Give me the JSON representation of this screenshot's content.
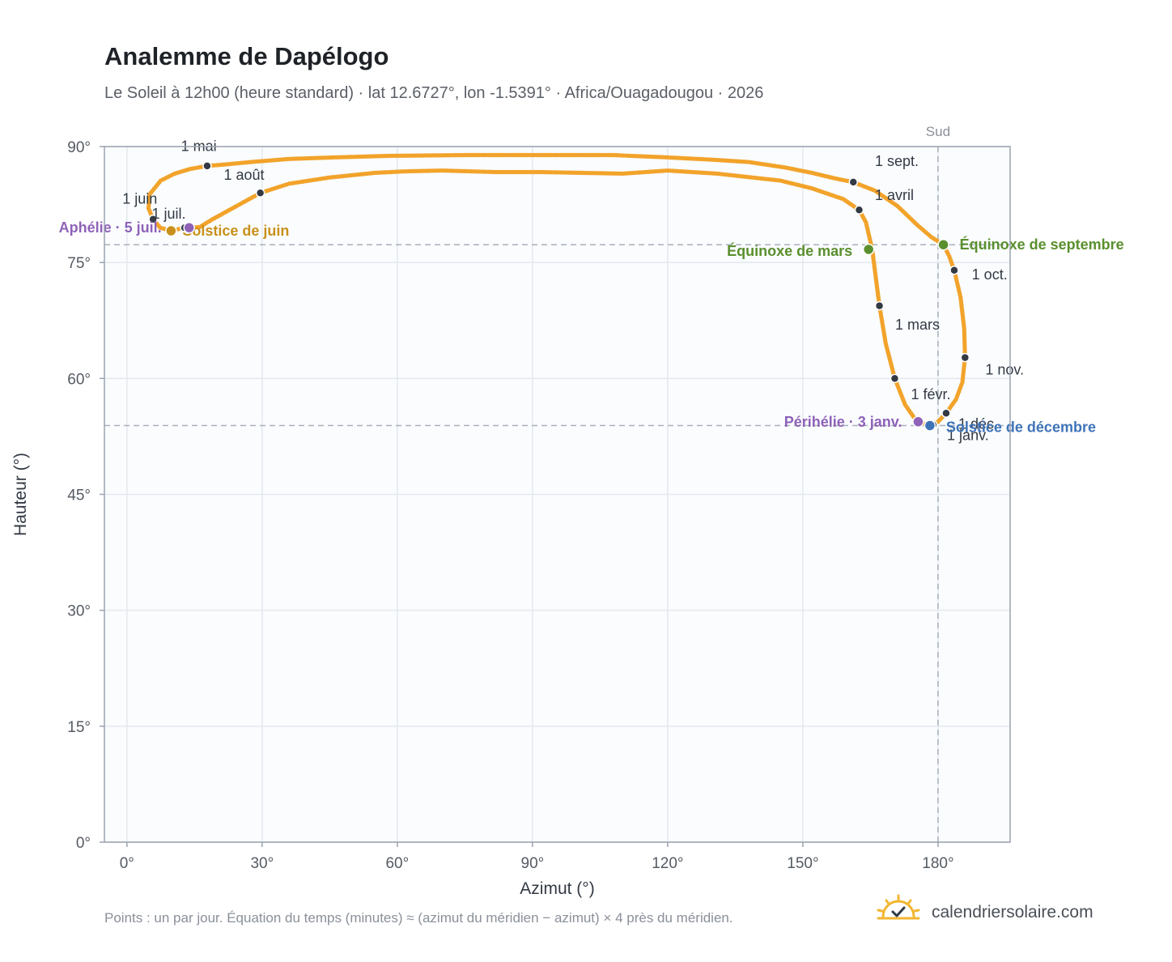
{
  "header": {
    "title": "Analemme de Dapélogo",
    "subtitle": "Le Soleil à 12h00 (heure standard) · lat 12.6727°, lon -1.5391° · Africa/Ouagadougou · 2026"
  },
  "footer": {
    "note": "Points : un par jour. Équation du temps (minutes) ≈ (azimut du méridien − azimut) × 4 près du méridien.",
    "brand": "calendriersolaire.com"
  },
  "colors": {
    "curve": "#f2a32a",
    "month_marker": "#333a44",
    "solstice_june": "#c8901a",
    "solstice_december": "#3f73b8",
    "equinox": "#5a8f2e",
    "apsis": "#8f62b8",
    "plot_bg": "#fafcfe",
    "grid": "#e4e8ee",
    "frame": "#9aa3b0",
    "reference_line": "#a8b0bb"
  },
  "chart_data": {
    "type": "scatter",
    "xlabel": "Azimut (°)",
    "ylabel": "Hauteur (°)",
    "xlim": [
      -5,
      196
    ],
    "ylim": [
      0,
      90
    ],
    "xticks": [
      0,
      30,
      60,
      90,
      120,
      150,
      180
    ],
    "yticks": [
      0,
      15,
      30,
      45,
      60,
      75,
      90
    ],
    "xtick_labels": [
      "0°",
      "30°",
      "60°",
      "90°",
      "120°",
      "150°",
      "180°"
    ],
    "ytick_labels": [
      "0°",
      "15°",
      "30°",
      "45°",
      "60°",
      "75°",
      "90°"
    ],
    "grid": true,
    "reference_lines": [
      {
        "orientation": "vertical",
        "value": 180,
        "label": "Sud"
      },
      {
        "orientation": "horizontal",
        "value": 77.3,
        "label": ""
      },
      {
        "orientation": "horizontal",
        "value": 53.9,
        "label": ""
      }
    ],
    "curve": [
      [
        178.2,
        53.9
      ],
      [
        175.2,
        54.5
      ],
      [
        172.7,
        56.6
      ],
      [
        170.4,
        60.0
      ],
      [
        168.4,
        64.5
      ],
      [
        167.0,
        69.4
      ],
      [
        166.2,
        73.0
      ],
      [
        165.4,
        76.7
      ],
      [
        164.0,
        80.2
      ],
      [
        162.5,
        81.8
      ],
      [
        159.0,
        83.2
      ],
      [
        152.0,
        84.6
      ],
      [
        145.0,
        85.6
      ],
      [
        131.0,
        86.5
      ],
      [
        120.0,
        86.9
      ],
      [
        110.0,
        86.5
      ],
      [
        92.0,
        86.7
      ],
      [
        82.0,
        86.7
      ],
      [
        70.0,
        86.9
      ],
      [
        62.0,
        86.8
      ],
      [
        55.0,
        86.6
      ],
      [
        45.0,
        86.0
      ],
      [
        36.0,
        85.2
      ],
      [
        29.6,
        84.0
      ],
      [
        24.0,
        82.2
      ],
      [
        19.0,
        80.6
      ],
      [
        16.2,
        79.6
      ],
      [
        13.8,
        79.5
      ],
      [
        12.0,
        79.4
      ],
      [
        9.8,
        79.1
      ],
      [
        7.4,
        79.5
      ],
      [
        5.8,
        80.6
      ],
      [
        4.8,
        82.0
      ],
      [
        5.0,
        83.8
      ],
      [
        7.5,
        85.6
      ],
      [
        10.6,
        86.5
      ],
      [
        14.0,
        87.1
      ],
      [
        17.8,
        87.5
      ],
      [
        22.0,
        87.7
      ],
      [
        27.5,
        88.0
      ],
      [
        36.0,
        88.4
      ],
      [
        46.0,
        88.6
      ],
      [
        58.0,
        88.8
      ],
      [
        75.0,
        88.9
      ],
      [
        91.0,
        88.9
      ],
      [
        108.0,
        88.9
      ],
      [
        120.0,
        88.6
      ],
      [
        130.0,
        88.3
      ],
      [
        138.0,
        88.0
      ],
      [
        146.0,
        87.3
      ],
      [
        152.0,
        86.6
      ],
      [
        157.0,
        85.9
      ],
      [
        161.2,
        85.4
      ],
      [
        166.0,
        84.3
      ],
      [
        171.0,
        82.3
      ],
      [
        175.5,
        79.8
      ],
      [
        178.5,
        78.3
      ],
      [
        181.2,
        77.3
      ],
      [
        182.5,
        75.8
      ],
      [
        183.6,
        74.0
      ],
      [
        185.0,
        70.5
      ],
      [
        185.8,
        66.5
      ],
      [
        186.0,
        62.7
      ],
      [
        185.4,
        59.5
      ],
      [
        184.0,
        57.3
      ],
      [
        181.8,
        55.5
      ],
      [
        180.0,
        54.4
      ],
      [
        178.2,
        53.9
      ]
    ],
    "month_markers": [
      {
        "label": "1 janv.",
        "az": 178.9,
        "alt": 54.0,
        "label_x": 182,
        "label_y": 52.0
      },
      {
        "label": "1 févr.",
        "az": 170.4,
        "alt": 60.0,
        "label_x": 174,
        "label_y": 57.3
      },
      {
        "label": "1 mars",
        "az": 167.0,
        "alt": 69.4,
        "label_x": 170.5,
        "label_y": 66.3
      },
      {
        "label": "1 avril",
        "az": 162.5,
        "alt": 81.8,
        "label_x": 166,
        "label_y": 83.1
      },
      {
        "label": "1 mai",
        "az": 17.8,
        "alt": 87.5,
        "label_x": 12,
        "label_y": 89.4
      },
      {
        "label": "1 juin",
        "az": 5.8,
        "alt": 80.6,
        "label_x": -1,
        "label_y": 82.6
      },
      {
        "label": "1 juil.",
        "az": 12.8,
        "alt": 79.5,
        "label_x": 5.5,
        "label_y": 80.7
      },
      {
        "label": "1 août",
        "az": 29.6,
        "alt": 84.0,
        "label_x": 21.5,
        "label_y": 85.7
      },
      {
        "label": "1 sept.",
        "az": 161.2,
        "alt": 85.4,
        "label_x": 166,
        "label_y": 87.5
      },
      {
        "label": "1 oct.",
        "az": 183.6,
        "alt": 74.0,
        "label_x": 187.5,
        "label_y": 72.8
      },
      {
        "label": "1 nov.",
        "az": 186.0,
        "alt": 62.7,
        "label_x": 190.5,
        "label_y": 60.5
      },
      {
        "label": "1 déc.",
        "az": 181.8,
        "alt": 55.5,
        "label_x": 184.5,
        "label_y": 53.5
      }
    ],
    "events": [
      {
        "label": "Solstice de juin",
        "az": 9.8,
        "alt": 79.1,
        "kind": "solstice_june",
        "anchor": "start",
        "dx": 14,
        "dy": 6
      },
      {
        "label": "Aphélie · 5 juil.",
        "az": 13.8,
        "alt": 79.5,
        "kind": "apsis",
        "anchor": "end",
        "dx": -34,
        "dy": 6
      },
      {
        "label": "Équinoxe de mars",
        "az": 164.6,
        "alt": 76.7,
        "kind": "equinox",
        "anchor": "end",
        "dx": -20,
        "dy": 8
      },
      {
        "label": "Équinoxe de septembre",
        "az": 181.2,
        "alt": 77.3,
        "kind": "equinox",
        "anchor": "start",
        "dx": 20,
        "dy": 6
      },
      {
        "label": "Périhélie · 3 janv.",
        "az": 175.6,
        "alt": 54.4,
        "kind": "apsis",
        "anchor": "end",
        "dx": -20,
        "dy": 6
      },
      {
        "label": "Solstice de décembre",
        "az": 178.2,
        "alt": 53.9,
        "kind": "solstice_december",
        "anchor": "start",
        "dx": 20,
        "dy": 8
      }
    ]
  }
}
